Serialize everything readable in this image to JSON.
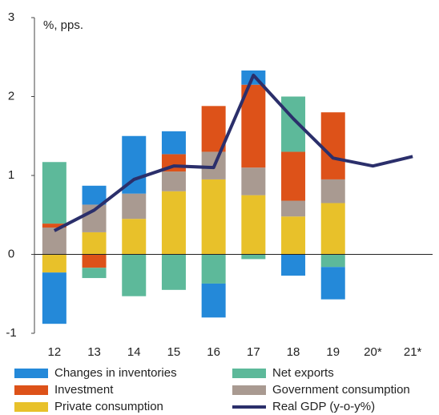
{
  "chart_data": {
    "type": "bar",
    "stacked": true,
    "y_label": "%, pps.",
    "categories": [
      "12",
      "13",
      "14",
      "15",
      "16",
      "17",
      "18",
      "19",
      "20*",
      "21*"
    ],
    "ylim": [
      -1,
      3
    ],
    "yticks": [
      -1,
      0,
      1,
      2,
      3
    ],
    "series": [
      {
        "name": "Private consumption",
        "color": "#e8c12a",
        "values": [
          -0.23,
          0.28,
          0.45,
          0.8,
          0.95,
          0.75,
          0.48,
          0.65,
          null,
          null
        ]
      },
      {
        "name": "Government consumption",
        "color": "#a99a91",
        "values": [
          0.34,
          0.35,
          0.32,
          0.25,
          0.35,
          0.35,
          0.2,
          0.3,
          null,
          null
        ]
      },
      {
        "name": "Investment",
        "color": "#dd5219",
        "values": [
          0.05,
          -0.17,
          null,
          0.22,
          0.58,
          1.05,
          0.62,
          0.85,
          null,
          null
        ]
      },
      {
        "name": "Net exports",
        "color": "#5db99a",
        "values": [
          0.78,
          -0.13,
          -0.53,
          -0.45,
          -0.37,
          -0.06,
          0.7,
          -0.16,
          null,
          null
        ]
      },
      {
        "name": "Changes in inventories",
        "color": "#2489d9",
        "values": [
          -0.65,
          0.24,
          0.73,
          0.29,
          -0.43,
          0.18,
          -0.27,
          -0.41,
          null,
          null
        ]
      },
      {
        "name": "Real GDP (y-o-y%)",
        "type": "line",
        "color": "#2b2f6b",
        "values": [
          0.3,
          0.56,
          0.95,
          1.12,
          1.1,
          2.27,
          1.72,
          1.22,
          1.12,
          1.24
        ]
      }
    ]
  }
}
